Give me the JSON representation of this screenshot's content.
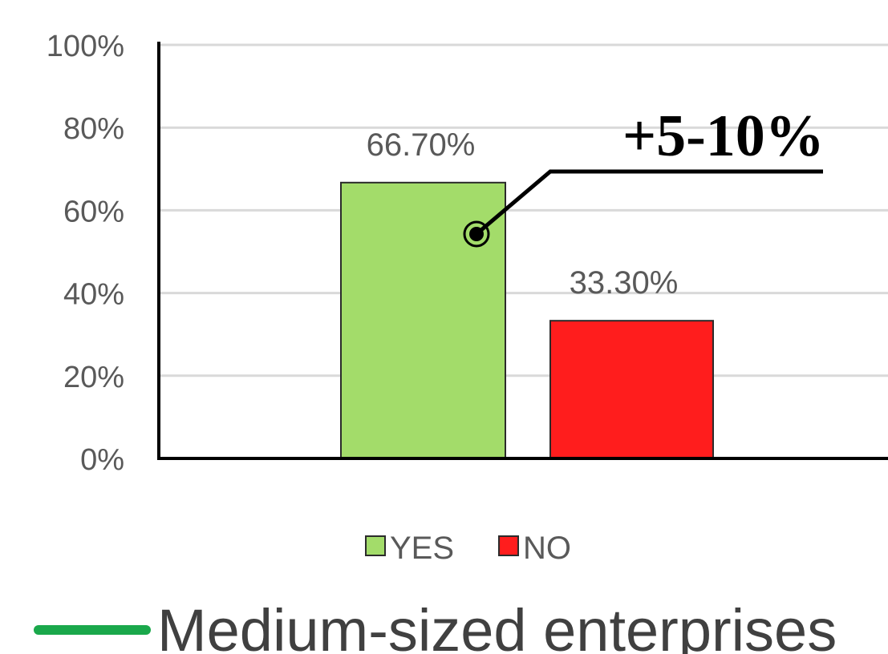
{
  "chart_data": {
    "type": "bar",
    "categories": [
      "YES",
      "NO"
    ],
    "values": [
      66.7,
      33.3
    ],
    "data_labels": [
      "66.70%",
      "33.30%"
    ],
    "ylim": [
      0,
      100
    ],
    "yticks": [
      "0%",
      "20%",
      "40%",
      "60%",
      "80%",
      "100%"
    ],
    "grid": true,
    "legend_position": "bottom",
    "legend": [
      "YES",
      "NO"
    ],
    "colors": [
      "#a3dc6a",
      "#ff1d1d"
    ],
    "annotation": "+5-10%"
  },
  "caption": {
    "text": "Medium-sized enterprises",
    "line_color": "#1aa84b"
  }
}
